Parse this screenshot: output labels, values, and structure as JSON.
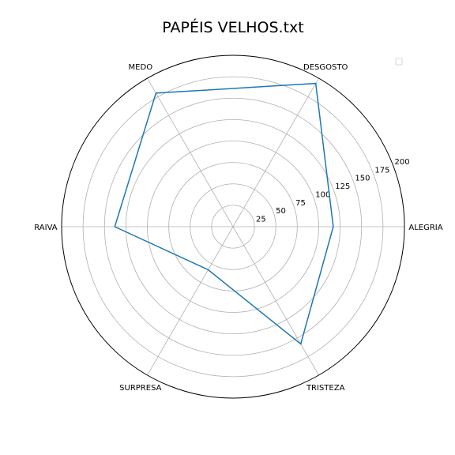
{
  "chart_data": {
    "type": "radar",
    "title": "PAPÉIS VELHOS.txt",
    "categories": [
      "ALEGRIA",
      "DESGOSTO",
      "MEDO",
      "RAIVA",
      "SURPRESA",
      "TRISTEZA"
    ],
    "series": [
      {
        "values": [
          117,
          193,
          180,
          138,
          58,
          158
        ]
      }
    ],
    "radial_ticks": [
      25,
      50,
      75,
      100,
      125,
      150,
      175,
      200
    ],
    "rlim": [
      0,
      200
    ],
    "grid": true,
    "legend": "top-right",
    "colors": {
      "series": "#1f77b4",
      "grid": "#b0b0b0",
      "frame": "#000000"
    }
  }
}
